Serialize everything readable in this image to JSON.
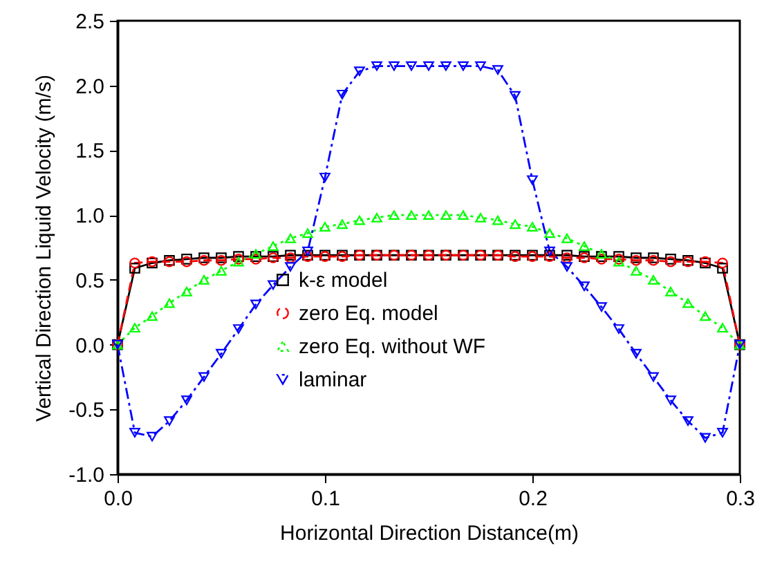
{
  "chart_data": {
    "type": "line",
    "xlabel": "Horizontal Direction Distance(m)",
    "ylabel": "Vertical Direction Liquid Velocity (m/s)",
    "x": [
      0,
      0.00833,
      0.01667,
      0.025,
      0.03333,
      0.04167,
      0.05,
      0.05833,
      0.06667,
      0.075,
      0.08333,
      0.09167,
      0.1,
      0.10833,
      0.11667,
      0.125,
      0.13333,
      0.14167,
      0.15,
      0.15833,
      0.16667,
      0.175,
      0.18333,
      0.19167,
      0.2,
      0.20833,
      0.21667,
      0.225,
      0.23333,
      0.24167,
      0.25,
      0.25833,
      0.26667,
      0.275,
      0.28333,
      0.29167,
      0.3
    ],
    "series": [
      {
        "name": "k-ε model",
        "color": "#000000",
        "marker": "square",
        "line_style": "solid",
        "values": [
          0,
          0.59,
          0.63,
          0.65,
          0.66,
          0.67,
          0.67,
          0.68,
          0.68,
          0.68,
          0.69,
          0.69,
          0.69,
          0.69,
          0.69,
          0.69,
          0.69,
          0.69,
          0.69,
          0.69,
          0.69,
          0.69,
          0.69,
          0.69,
          0.69,
          0.69,
          0.69,
          0.68,
          0.68,
          0.68,
          0.67,
          0.67,
          0.66,
          0.65,
          0.63,
          0.59,
          0
        ]
      },
      {
        "name": "zero Eq. model",
        "color": "#ff0000",
        "marker": "circle",
        "line_style": "dashed",
        "values": [
          0,
          0.63,
          0.64,
          0.64,
          0.64,
          0.65,
          0.65,
          0.66,
          0.66,
          0.67,
          0.67,
          0.68,
          0.68,
          0.68,
          0.69,
          0.69,
          0.69,
          0.69,
          0.69,
          0.69,
          0.69,
          0.69,
          0.69,
          0.68,
          0.68,
          0.68,
          0.67,
          0.67,
          0.66,
          0.66,
          0.65,
          0.65,
          0.64,
          0.64,
          0.64,
          0.63,
          0
        ]
      },
      {
        "name": "zero Eq. without WF",
        "color": "#00ff00",
        "marker": "triangle",
        "line_style": "dotted",
        "values": [
          0,
          0.13,
          0.22,
          0.32,
          0.41,
          0.5,
          0.57,
          0.64,
          0.7,
          0.76,
          0.82,
          0.86,
          0.91,
          0.93,
          0.96,
          0.98,
          1.0,
          1.0,
          1.0,
          1.0,
          1.0,
          0.98,
          0.96,
          0.93,
          0.91,
          0.86,
          0.82,
          0.76,
          0.7,
          0.64,
          0.57,
          0.5,
          0.41,
          0.32,
          0.22,
          0.13,
          0
        ]
      },
      {
        "name": "laminar",
        "color": "#0000ff",
        "marker": "triangle-down",
        "line_style": "dashdot",
        "values": [
          0,
          -0.68,
          -0.71,
          -0.59,
          -0.43,
          -0.25,
          -0.07,
          0.12,
          0.31,
          0.46,
          0.6,
          0.72,
          1.29,
          1.93,
          2.11,
          2.15,
          2.15,
          2.15,
          2.15,
          2.15,
          2.15,
          2.15,
          2.12,
          1.92,
          1.27,
          0.72,
          0.6,
          0.45,
          0.29,
          0.12,
          -0.07,
          -0.25,
          -0.43,
          -0.59,
          -0.72,
          -0.68,
          0
        ]
      }
    ],
    "xlim": [
      0,
      0.3
    ],
    "xticks": [
      {
        "value": 0,
        "label": "0.0"
      },
      {
        "value": 0.1,
        "label": "0.1"
      },
      {
        "value": 0.2,
        "label": "0.2"
      },
      {
        "value": 0.3,
        "label": "0.3"
      }
    ],
    "ylim": [
      -1.0,
      2.5
    ],
    "yticks": [
      {
        "value": -1,
        "label": "-1.0"
      },
      {
        "value": -0.5,
        "label": "-0.5"
      },
      {
        "value": 0,
        "label": "0.0"
      },
      {
        "value": 0.5,
        "label": "0.5"
      },
      {
        "value": 1,
        "label": "1.0"
      },
      {
        "value": 1.5,
        "label": "1.5"
      },
      {
        "value": 2,
        "label": "2.0"
      },
      {
        "value": 2.5,
        "label": "2.5"
      }
    ],
    "grid": false,
    "legend": "center"
  }
}
